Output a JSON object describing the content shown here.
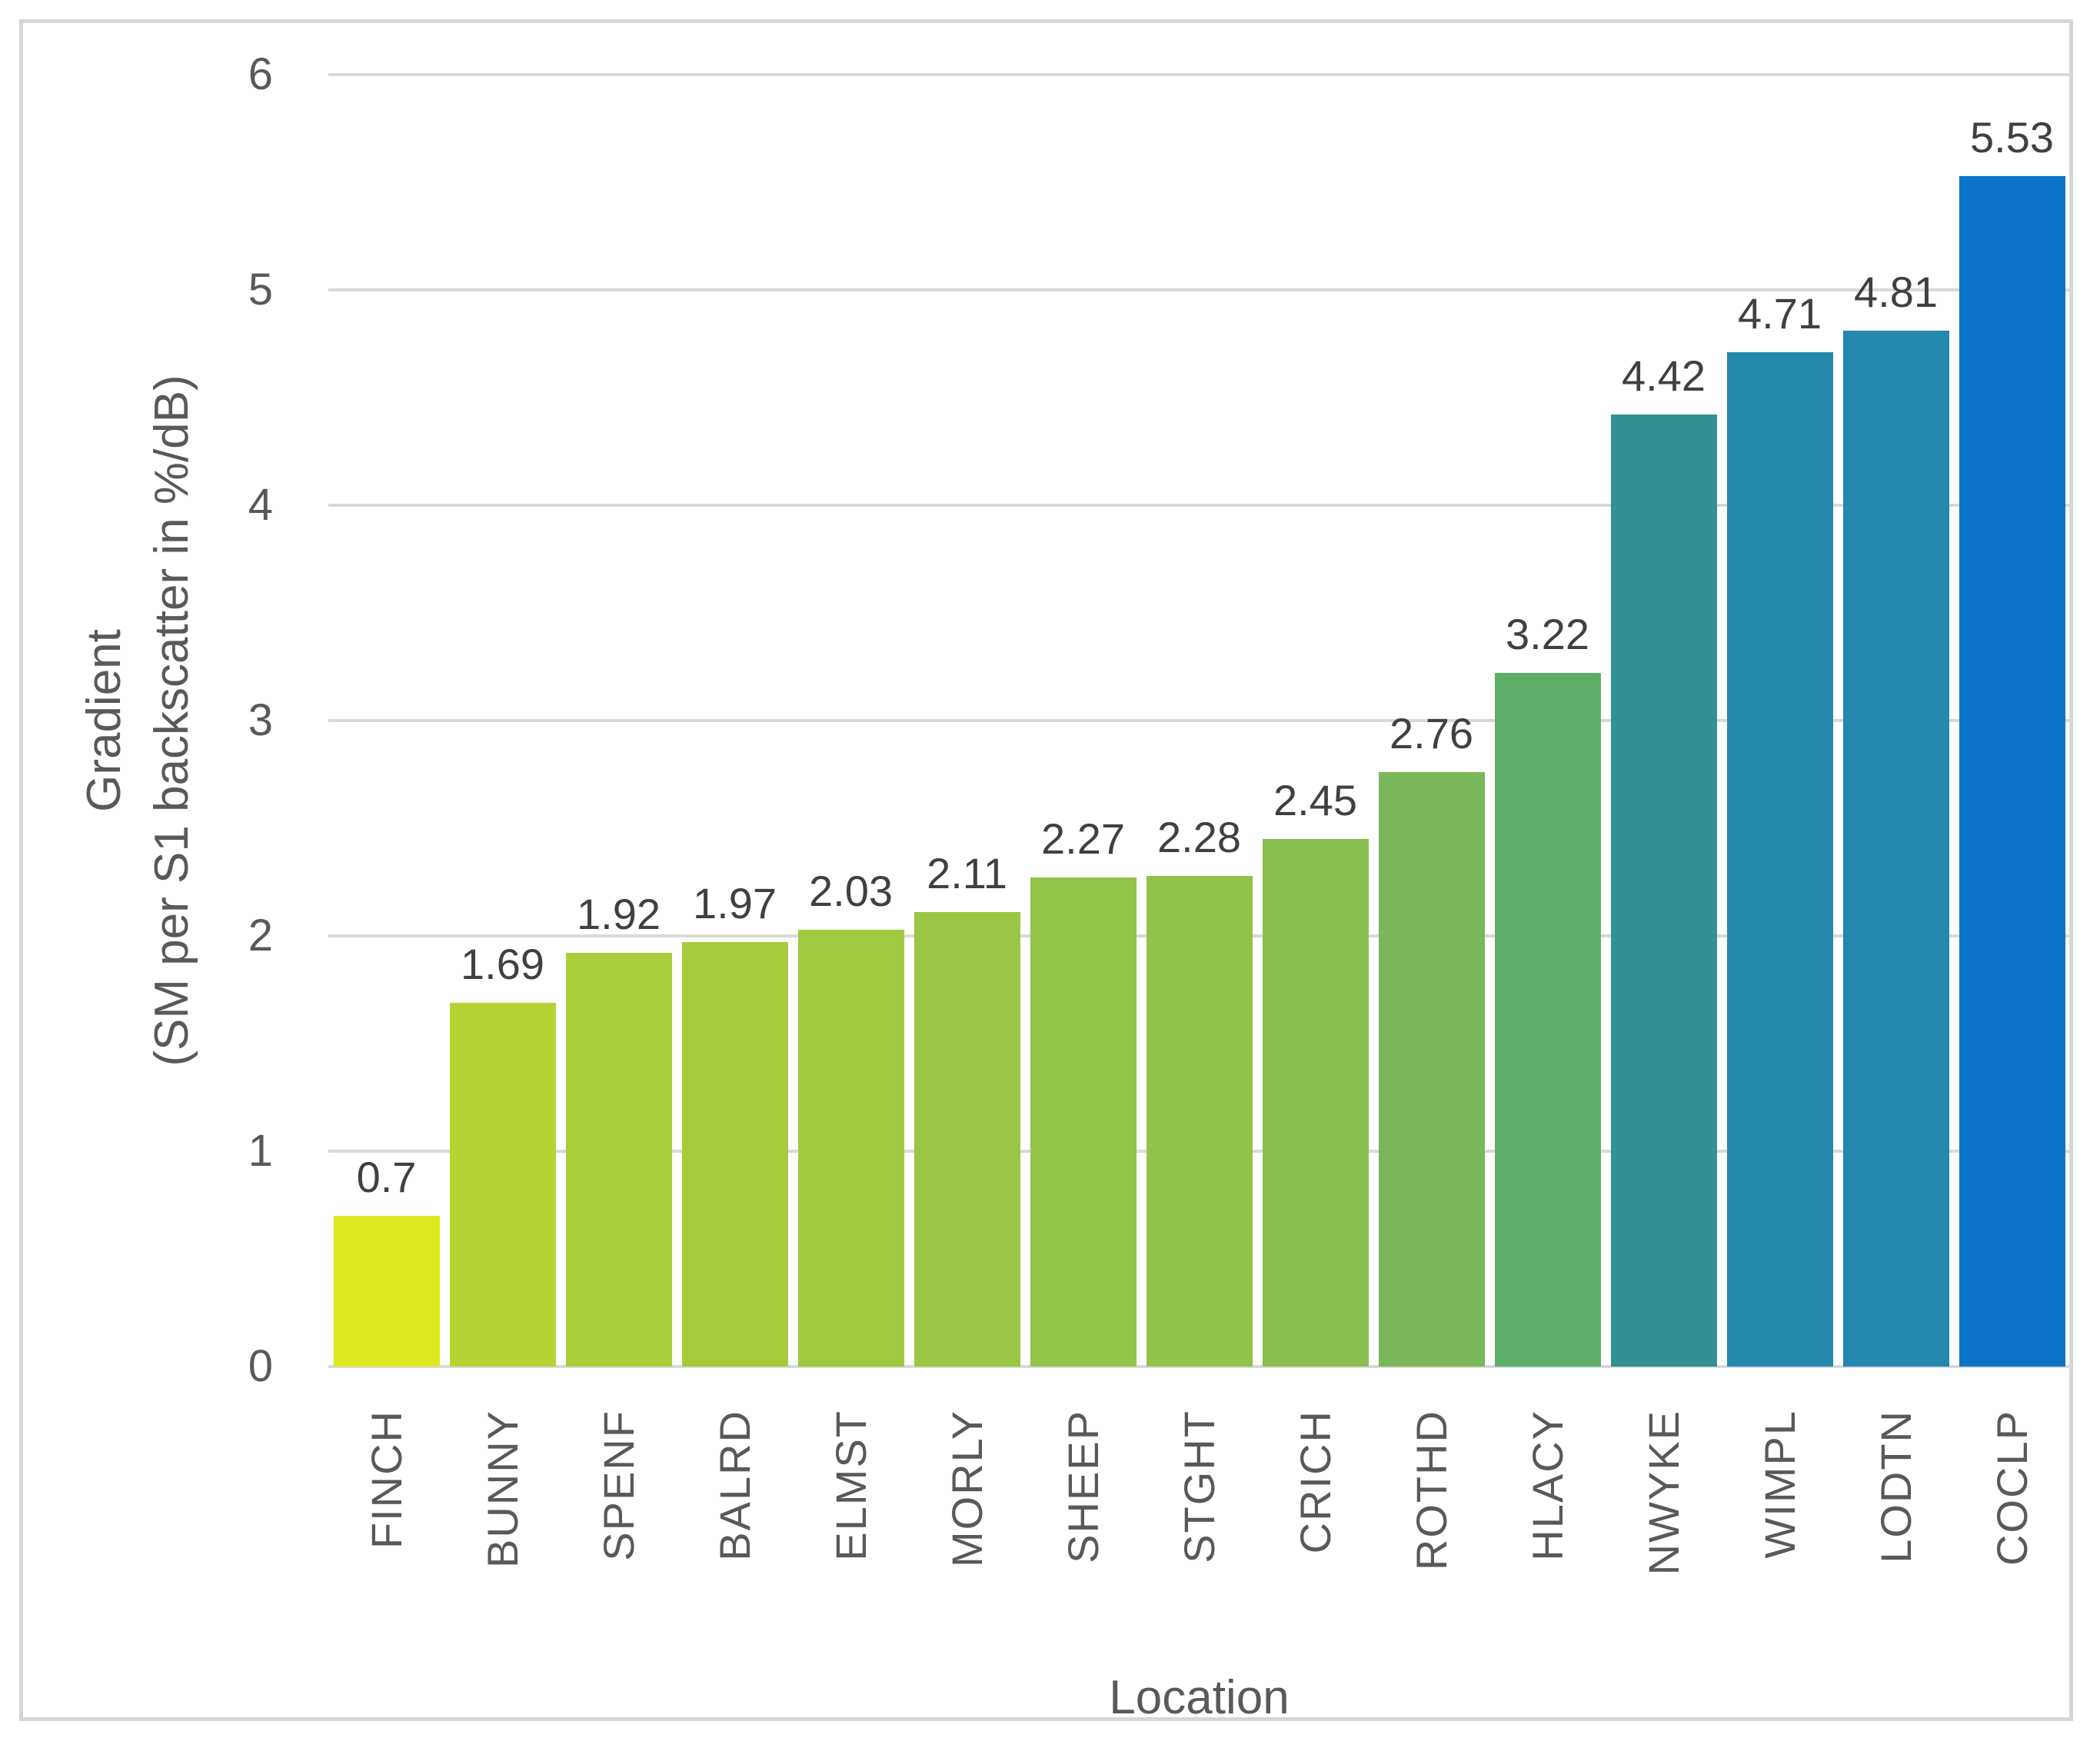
{
  "figure": {
    "background_color": "#ffffff",
    "border_color": "#d6d6d6"
  },
  "chart_data": {
    "type": "bar",
    "title": "",
    "xlabel": "Location",
    "ylabel": "Gradient (SM per S1 backscatter in %/dB)",
    "ylabel_line1": "Gradient",
    "ylabel_line2": "(SM per S1 backscatter in %/dB)",
    "categories": [
      "FINCH",
      "BUNNY",
      "SPENF",
      "BALRD",
      "ELMST",
      "MORLY",
      "SHEEP",
      "STGHT",
      "CRICH",
      "ROTHD",
      "HLACY",
      "NWYKE",
      "WIMPL",
      "LODTN",
      "COCLP"
    ],
    "values": [
      0.7,
      1.69,
      1.92,
      1.97,
      2.03,
      2.11,
      2.27,
      2.28,
      2.45,
      2.76,
      3.22,
      4.42,
      4.71,
      4.81,
      5.53
    ],
    "value_labels": [
      "0.7",
      "1.69",
      "1.92",
      "1.97",
      "2.03",
      "2.11",
      "2.27",
      "2.28",
      "2.45",
      "2.76",
      "3.22",
      "4.42",
      "4.71",
      "4.81",
      "5.53"
    ],
    "bar_colors": [
      "#dce820",
      "#b5d334",
      "#a9ce3a",
      "#a5cb3d",
      "#a0c940",
      "#9bc643",
      "#93c348",
      "#92c249",
      "#89bf4e",
      "#79b75a",
      "#5fae68",
      "#339093",
      "#2589ab",
      "#2387ae",
      "#0c75c7"
    ],
    "ylim": [
      0,
      6
    ],
    "yticks": [
      0,
      1,
      2,
      3,
      4,
      5,
      6
    ],
    "grid": true,
    "legend": "none",
    "gridline_color": "#d9d9d9",
    "tick_label_color": "#595959",
    "value_label_color": "#404040",
    "axis_title_color": "#595959"
  }
}
